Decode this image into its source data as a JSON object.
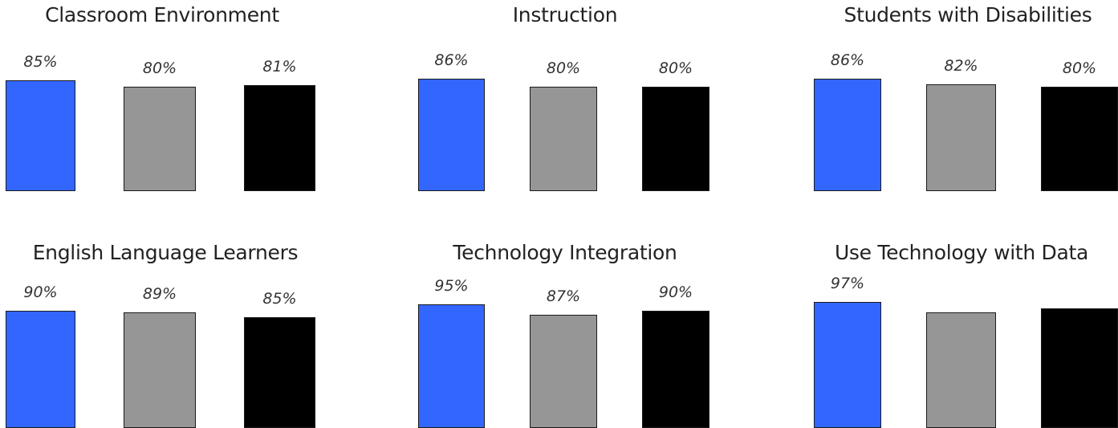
{
  "chart_data": [
    {
      "type": "bar",
      "title": "Classroom Environment",
      "categories": [
        "",
        "",
        ""
      ],
      "values": [
        85,
        80,
        81
      ],
      "labels": [
        "85%",
        "80%",
        "81%"
      ],
      "colors": [
        "#3366ff",
        "#969696",
        "#000000"
      ],
      "ylim": [
        0,
        100
      ],
      "grid": false
    },
    {
      "type": "bar",
      "title": "Instruction",
      "categories": [
        "",
        "",
        ""
      ],
      "values": [
        86,
        80,
        80
      ],
      "labels": [
        "86%",
        "80%",
        "80%"
      ],
      "colors": [
        "#3366ff",
        "#969696",
        "#000000"
      ],
      "ylim": [
        0,
        100
      ],
      "grid": false
    },
    {
      "type": "bar",
      "title": "Students with Disabilities",
      "categories": [
        "",
        "",
        ""
      ],
      "values": [
        86,
        82,
        80
      ],
      "labels": [
        "86%",
        "82%",
        "80%"
      ],
      "colors": [
        "#3366ff",
        "#969696",
        "#000000"
      ],
      "ylim": [
        0,
        100
      ],
      "grid": false
    },
    {
      "type": "bar",
      "title": "English Language Learners",
      "categories": [
        "",
        "",
        ""
      ],
      "values": [
        90,
        89,
        85
      ],
      "labels": [
        "90%",
        "89%",
        "85%"
      ],
      "colors": [
        "#3366ff",
        "#969696",
        "#000000"
      ],
      "ylim": [
        0,
        100
      ],
      "grid": false
    },
    {
      "type": "bar",
      "title": "Technology Integration",
      "categories": [
        "",
        "",
        ""
      ],
      "values": [
        95,
        87,
        90
      ],
      "labels": [
        "95%",
        "87%",
        "90%"
      ],
      "colors": [
        "#3366ff",
        "#969696",
        "#000000"
      ],
      "ylim": [
        0,
        100
      ],
      "grid": false
    },
    {
      "type": "bar",
      "title": "Use Technology with Data",
      "categories": [
        "",
        "",
        ""
      ],
      "values": [
        97,
        89,
        92
      ],
      "labels": [
        "97%",
        "",
        ""
      ],
      "colors": [
        "#3366ff",
        "#969696",
        "#000000"
      ],
      "ylim": [
        0,
        100
      ],
      "grid": false
    }
  ]
}
